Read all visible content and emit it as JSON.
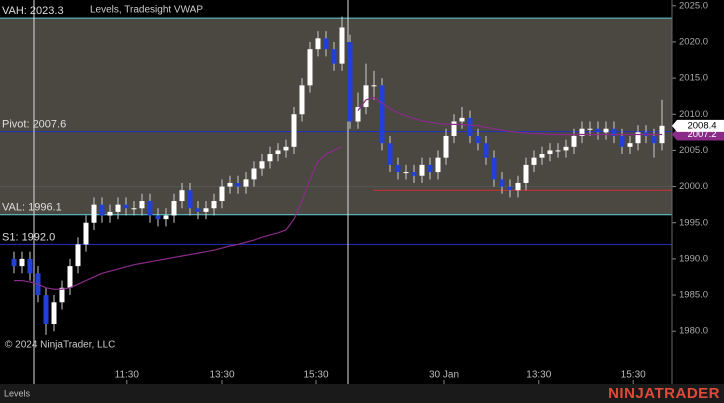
{
  "chart_data": {
    "type": "candlestick",
    "title": "Levels, Tradesight VWAP",
    "copyright": "© 2024 NinjaTrader, LLC",
    "tab": "Levels",
    "logo": "NINJATRADER",
    "ylim": [
      1972.7,
      2025.8
    ],
    "yticks": [
      {
        "value": 1980,
        "label": "1980.0"
      },
      {
        "value": 1985,
        "label": "1985.0"
      },
      {
        "value": 1990,
        "label": "1990.0"
      },
      {
        "value": 1995,
        "label": "1995.0"
      },
      {
        "value": 2000,
        "label": "2000.0"
      },
      {
        "value": 2005,
        "label": "2005.0"
      },
      {
        "value": 2010,
        "label": "2010.0"
      },
      {
        "value": 2015,
        "label": "2015.0"
      },
      {
        "value": 2020,
        "label": "2020.0"
      },
      {
        "value": 2025,
        "label": "2025.0"
      }
    ],
    "xlim": [
      -1.75,
      82.25
    ],
    "xticks": [
      {
        "value": 14.1,
        "label": "11:30"
      },
      {
        "value": 26,
        "label": "13:30"
      },
      {
        "value": 37.75,
        "label": "15:30"
      },
      {
        "value": 53.75,
        "label": "30 Jan"
      },
      {
        "value": 65.6,
        "label": "13:30"
      },
      {
        "value": 77.4,
        "label": "15:30"
      }
    ],
    "vlines": [
      2.5,
      41.75
    ],
    "up_color": "#ffffff",
    "down_color": "#2040d8",
    "shade_color": "#4a4840",
    "ohlc": {
      "open": [
        1990,
        1989,
        1990,
        1988,
        1985,
        1981,
        1984,
        1986,
        1989,
        1992,
        1995,
        1997.5,
        1996,
        1996.5,
        1997.5,
        1997,
        1997,
        1998,
        1996,
        1995.5,
        1996,
        1998,
        1999.5,
        1997,
        1996.5,
        1997,
        1998,
        2000,
        2000.5,
        2000,
        2001,
        2002.5,
        2003.5,
        2004.5,
        2005,
        2005.5,
        2010,
        2014,
        2019,
        2020.5,
        2019,
        2017,
        2020,
        2009,
        2011,
        2014,
        2014,
        2006,
        2003,
        2002,
        2002,
        2001.5,
        2003,
        2002,
        2004,
        2007,
        2009,
        2009.5,
        2007,
        2006,
        2004,
        2001,
        2000,
        1999.5,
        2000.5,
        2003,
        2004,
        2004.5,
        2005,
        2005,
        2005.5,
        2007,
        2008,
        2008,
        2007.5,
        2008,
        2007,
        2005.5,
        2006,
        2007.5,
        2007,
        2006
      ],
      "high": [
        1991,
        1991,
        1991,
        1989,
        1986,
        1985,
        1987,
        1990,
        1993,
        1996,
        1998.5,
        1998.5,
        1997.5,
        1998.5,
        1998.5,
        1998,
        1999,
        1999,
        1997,
        1997,
        1999,
        2000.5,
        2000.5,
        1998,
        1998,
        1999,
        2001,
        2001.5,
        2001.5,
        2002,
        2003.5,
        2004.5,
        2005.5,
        2006,
        2006.5,
        2011,
        2015,
        2020,
        2021.5,
        2021.5,
        2020,
        2023.5,
        2021,
        2013,
        2017,
        2016,
        2015,
        2007,
        2004,
        2003,
        2003,
        2004,
        2004,
        2005,
        2008,
        2010,
        2011,
        2010.5,
        2008,
        2007,
        2005,
        2002,
        2001,
        2001.5,
        2004,
        2005,
        2005.5,
        2006,
        2006,
        2006.5,
        2008,
        2009,
        2009,
        2009,
        2009,
        2009,
        2008,
        2007,
        2008.5,
        2008.5,
        2008,
        2012
      ],
      "low": [
        1988,
        1988,
        1987,
        1984,
        1979.5,
        1980,
        1983,
        1985,
        1988,
        1991,
        1994,
        1995,
        1995,
        1995.5,
        1996,
        1996,
        1996,
        1995,
        1994.5,
        1994.5,
        1995,
        1997,
        1996,
        1995.5,
        1995.5,
        1996,
        1997,
        1999,
        1999,
        1999,
        2000,
        2001.5,
        2002.5,
        2003.5,
        2004,
        2004.5,
        2009,
        2013,
        2018,
        2018,
        2016,
        2016,
        2008,
        2008,
        2010,
        2012,
        2005,
        2002,
        2001,
        2001,
        2000.5,
        2000.5,
        2001,
        2001,
        2003,
        2006,
        2008,
        2006,
        2005,
        2003,
        2000,
        1999,
        1998.5,
        1998.5,
        1999.5,
        2002,
        2003,
        2003.5,
        2004,
        2004,
        2004.5,
        2006,
        2007,
        2006.5,
        2006.5,
        2006,
        2004.5,
        2004.5,
        2005,
        2006,
        2004,
        2005
      ],
      "close": [
        1989,
        1990,
        1988,
        1985,
        1981,
        1984,
        1986,
        1989,
        1992,
        1995,
        1997.5,
        1996,
        1996.5,
        1997.5,
        1997,
        1997,
        1998,
        1996,
        1995.5,
        1996,
        1998,
        1999.5,
        1997,
        1996.5,
        1997,
        1998,
        2000,
        2000.5,
        2000,
        2001,
        2002.5,
        2003.5,
        2004.5,
        2005,
        2005.5,
        2010,
        2014,
        2019,
        2020.5,
        2019,
        2017,
        2022,
        2009,
        2011,
        2014,
        2014,
        2006,
        2003,
        2002,
        2002,
        2001.5,
        2003,
        2002,
        2004,
        2007,
        2009,
        2009.5,
        2007,
        2006,
        2004,
        2001,
        2000,
        1999.5,
        2000.5,
        2003,
        2004,
        2004.5,
        2005,
        2005,
        2005.5,
        2007,
        2008,
        2008,
        2007.5,
        2008,
        2007,
        2005.5,
        2006,
        2007.5,
        2007,
        2006,
        2008.4
      ]
    },
    "series": [
      {
        "name": "Tradesight VWAP",
        "color": "#8a2b8a",
        "values": [
          1987,
          1987,
          1986.8,
          1986.5,
          1986,
          1985.8,
          1985.8,
          1986,
          1986.5,
          1987,
          1987.5,
          1988,
          1988.3,
          1988.6,
          1988.9,
          1989.2,
          1989.4,
          1989.6,
          1989.8,
          1990,
          1990.2,
          1990.4,
          1990.6,
          1990.8,
          1991,
          1991.2,
          1991.5,
          1991.8,
          1992,
          1992.3,
          1992.6,
          1993,
          1993.3,
          1993.6,
          1994,
          1995.5,
          1998,
          2001,
          2003.5,
          2004.5,
          2005,
          2005.5,
          null,
          2010.5,
          2012,
          2012.3,
          2011.5,
          2010.8,
          2010.2,
          2009.8,
          2009.4,
          2009.1,
          2008.9,
          2008.7,
          2008.6,
          2008.6,
          2008.6,
          2008.5,
          2008.4,
          2008.2,
          2008,
          2007.8,
          2007.6,
          2007.5,
          2007.4,
          2007.3,
          2007.3,
          2007.2,
          2007.2,
          2007.2,
          2007.2,
          2007.2,
          2007.2,
          2007.2,
          2007.2,
          2007.2,
          2007.2,
          2007.2,
          2007.2,
          2007.2,
          2007.2,
          2007.2
        ]
      }
    ],
    "levels": [
      {
        "label": "VAH: 2023.3",
        "value": 2023.3,
        "color": "#5fd0d8"
      },
      {
        "label": "Pivot: 2007.6",
        "value": 2007.6,
        "color": "#2030c0"
      },
      {
        "label": "VAL: 1996.1",
        "value": 1996.1,
        "color": "#5fd0d8"
      },
      {
        "label": "S1: 1992.0",
        "value": 1992.0,
        "color": "#2030c0"
      },
      {
        "value": 2000,
        "color": "#555555"
      },
      {
        "value": 1999.5,
        "color": "#d03030",
        "from": 45
      }
    ],
    "last_price": 2008.4,
    "vwap_last": 2007.2
  }
}
